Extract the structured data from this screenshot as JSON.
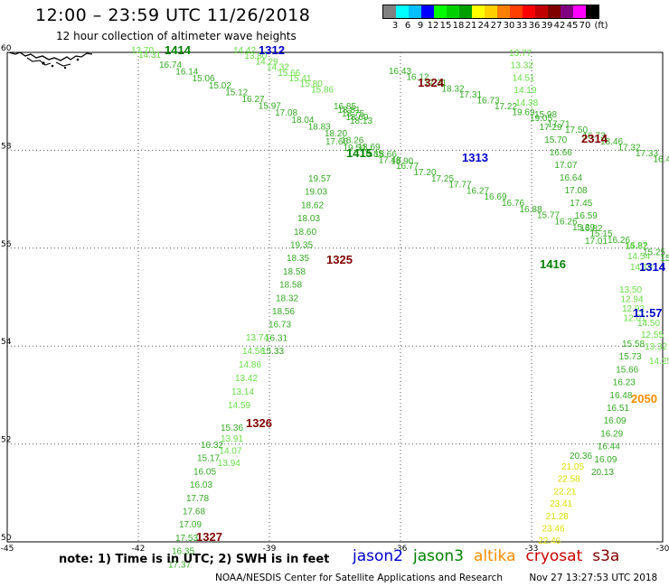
{
  "header": {
    "title": "12:00 – 23:59 UTC 11/26/2018",
    "subtitle": "12 hour collection of altimeter wave heights"
  },
  "legend": {
    "colors": [
      "#808080",
      "#00ffff",
      "#00bfff",
      "#0000ff",
      "#00ff00",
      "#00d000",
      "#00a000",
      "#ffff00",
      "#ffd000",
      "#ff8000",
      "#ff4000",
      "#ff0000",
      "#c00000",
      "#800000",
      "#800080",
      "#ff00ff",
      "#000000"
    ],
    "labels": [
      "3",
      "6",
      "9",
      "12",
      "15",
      "18",
      "21",
      "24",
      "27",
      "30",
      "33",
      "36",
      "39",
      "42",
      "45",
      "70",
      "(ft)"
    ]
  },
  "map": {
    "lat_min": 50,
    "lat_max": 60,
    "lon_min": -45,
    "lon_max": -30,
    "lat_labels": [
      "60",
      "58",
      "56",
      "54",
      "52",
      "50"
    ],
    "lon_labels": [
      "-45",
      "-42",
      "-39",
      "-36",
      "-33",
      "-30"
    ],
    "colors": {
      "jason2": "#0000cc",
      "jason3": "#008000",
      "altika": "#ff8c00",
      "cryosat": "#cc0000",
      "s3a": "#800000",
      "light": "#66dd44",
      "mid": "#33aa22",
      "yellow": "#dddd00"
    }
  },
  "tracks": [
    {
      "color": "light",
      "values": [
        "13.70",
        "14.31"
      ]
    },
    {
      "color": "mid",
      "values": [
        "16.74",
        "16.14",
        "15.06",
        "15.02",
        "15.12",
        "16.27",
        "15.97",
        "17.08",
        "18.04",
        "18.83",
        "18.20",
        "18.26",
        "18.69",
        "18.66",
        "18.90"
      ]
    },
    {
      "color": "light",
      "values": [
        "14.42",
        "13.80",
        "14.29",
        "14.32",
        "15.66",
        "15.41",
        "15.80",
        "15.86"
      ]
    },
    {
      "color": "mid",
      "values": [
        "16.85",
        "18.81",
        "18.75",
        "18.69",
        "18.13"
      ]
    },
    {
      "color": "mid",
      "values": [
        "16.43",
        "16.12",
        "17.31",
        "18.32",
        "17.31",
        "16.73",
        "17.22",
        "19.69",
        "19.05",
        "17.71",
        "17.50",
        "16.73",
        "18.46",
        "17.32",
        "17.33",
        "16.46",
        "16.78",
        "15.71",
        "15.84",
        "16.23",
        "16.39",
        "15.46",
        "15.09",
        "15.15",
        "15.53"
      ]
    },
    {
      "color": "mid",
      "values": [
        "17.66",
        "19.50",
        "18.85",
        "17.48",
        "16.77",
        "17.20",
        "17.25",
        "17.77",
        "16.27",
        "16.69",
        "16.76",
        "16.88",
        "15.77",
        "16.26",
        "15.39",
        "15.15",
        "16.26",
        "15.82",
        "15.25",
        "15.20",
        "16.53",
        "16.36",
        "16.41",
        "16.42",
        "16.38"
      ]
    },
    {
      "color": "mid",
      "values": [
        "19.57",
        "19.03",
        "18.62",
        "18.03",
        "18.60",
        "19.35",
        "18.35",
        "18.58",
        "18.58",
        "18.32",
        "18.56",
        "16.73",
        "16.31",
        "15.33"
      ]
    },
    {
      "color": "light",
      "values": [
        "13.74",
        "14.58",
        "14.86",
        "13.42",
        "13.14",
        "14.59"
      ]
    },
    {
      "color": "mid",
      "values": [
        "15.36"
      ]
    },
    {
      "color": "light",
      "values": [
        "13.91",
        "14.07",
        "13.94"
      ]
    },
    {
      "color": "mid",
      "values": [
        "16.32",
        "15.17",
        "16.05",
        "16.03",
        "17.78",
        "17.68",
        "17.09",
        "17.53",
        "16.35",
        "17.37"
      ]
    },
    {
      "color": "light",
      "values": [
        "13.77",
        "13.32",
        "14.51",
        "14.19",
        "14.38"
      ]
    },
    {
      "color": "mid",
      "values": [
        "15.98",
        "17.29",
        "15.70",
        "16.66",
        "17.07",
        "16.64",
        "17.08",
        "17.45",
        "16.59",
        "16.82",
        "17.01"
      ]
    },
    {
      "color": "light",
      "values": [
        "14.27",
        "14.54",
        "14.19"
      ]
    },
    {
      "color": "light",
      "values": [
        "13.50",
        "12.94",
        "12.92",
        "12.01"
      ]
    },
    {
      "color": "light",
      "values": [
        "14.50",
        "12.55",
        "13.32"
      ]
    },
    {
      "color": "light",
      "values": [
        "14.25"
      ]
    },
    {
      "color": "mid",
      "values": [
        "15.58",
        "15.73",
        "15.66",
        "16.23",
        "16.48",
        "16.51",
        "16.09",
        "16.29",
        "16.44",
        "16.09",
        "20.13"
      ]
    },
    {
      "color": "mid",
      "values": [
        "20.36"
      ]
    },
    {
      "color": "yellow",
      "values": [
        "21.05",
        "22.58",
        "22.21",
        "23.41",
        "21.28",
        "23.46",
        "22.46"
      ]
    }
  ],
  "passes": [
    {
      "label": "1414",
      "sat": "jason3"
    },
    {
      "label": "1312",
      "sat": "jason2"
    },
    {
      "label": "1324",
      "sat": "s3a"
    },
    {
      "label": "2314",
      "sat": "s3a"
    },
    {
      "label": "1415",
      "sat": "jason3"
    },
    {
      "label": "1313",
      "sat": "jason2"
    },
    {
      "label": "1325",
      "sat": "s3a"
    },
    {
      "label": "1416",
      "sat": "jason3"
    },
    {
      "label": "1314",
      "sat": "jason2"
    },
    {
      "label": "11:57",
      "sat": "jason2"
    },
    {
      "label": "1326",
      "sat": "s3a"
    },
    {
      "label": "2050",
      "sat": "altika"
    },
    {
      "label": "1327",
      "sat": "s3a"
    }
  ],
  "footer": {
    "note": "note:  1) Time is in UTC;  2) SWH is in feet",
    "satellites": [
      {
        "name": "jason2",
        "color": "#0000cc"
      },
      {
        "name": "jason3",
        "color": "#008000"
      },
      {
        "name": "altika",
        "color": "#ff8c00"
      },
      {
        "name": "cryosat",
        "color": "#cc0000"
      },
      {
        "name": "s3a",
        "color": "#800000"
      }
    ],
    "credit": "NOAA/NESDIS Center for Satellite Applications and Research",
    "timestamp": "Nov 27 13:27:53 UTC 2018"
  }
}
